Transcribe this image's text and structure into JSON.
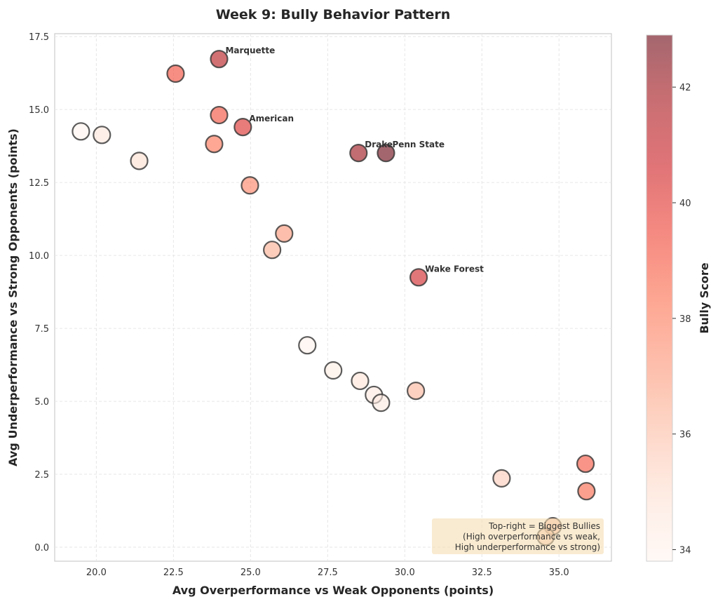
{
  "chart_data": {
    "type": "scatter",
    "title": "Week 9: Bully Behavior Pattern",
    "xlabel": "Avg Overperformance vs Weak Opponents (points)",
    "ylabel": "Avg Underperformance vs Strong Opponents (points)",
    "xlim": [
      18.65,
      36.7
    ],
    "ylim": [
      -0.48,
      17.6
    ],
    "xticks": [
      20.0,
      22.5,
      25.0,
      27.5,
      30.0,
      32.5,
      35.0
    ],
    "xtick_labels": [
      "20.0",
      "22.5",
      "25.0",
      "27.5",
      "30.0",
      "32.5",
      "35.0"
    ],
    "yticks": [
      0.0,
      2.5,
      5.0,
      7.5,
      10.0,
      12.5,
      15.0,
      17.5
    ],
    "ytick_labels": [
      "0.0",
      "2.5",
      "5.0",
      "7.5",
      "10.0",
      "12.5",
      "15.0",
      "17.5"
    ],
    "grid": true,
    "colorbar": {
      "label": "Bully Score",
      "colormap": "Reds",
      "range": [
        33.8,
        42.9
      ],
      "ticks": [
        34,
        36,
        38,
        40,
        42
      ],
      "tick_labels": [
        "34",
        "36",
        "38",
        "40",
        "42"
      ]
    },
    "points": [
      {
        "x": 19.5,
        "y": 14.25,
        "score": 33.9,
        "label": ""
      },
      {
        "x": 20.18,
        "y": 14.13,
        "score": 34.6,
        "label": ""
      },
      {
        "x": 21.39,
        "y": 13.24,
        "score": 35.0,
        "label": ""
      },
      {
        "x": 22.57,
        "y": 16.23,
        "score": 39.3,
        "label": ""
      },
      {
        "x": 23.98,
        "y": 16.73,
        "score": 41.3,
        "label": "Marquette"
      },
      {
        "x": 23.98,
        "y": 14.81,
        "score": 39.2,
        "label": ""
      },
      {
        "x": 24.75,
        "y": 14.4,
        "score": 40.2,
        "label": "American"
      },
      {
        "x": 23.82,
        "y": 13.82,
        "score": 38.3,
        "label": ""
      },
      {
        "x": 24.98,
        "y": 12.4,
        "score": 37.8,
        "label": ""
      },
      {
        "x": 26.09,
        "y": 10.75,
        "score": 37.2,
        "label": ""
      },
      {
        "x": 25.7,
        "y": 10.19,
        "score": 36.5,
        "label": ""
      },
      {
        "x": 28.5,
        "y": 13.51,
        "score": 42.0,
        "label": "Drake"
      },
      {
        "x": 29.39,
        "y": 13.51,
        "score": 42.9,
        "label": "Penn State"
      },
      {
        "x": 30.45,
        "y": 9.25,
        "score": 40.5,
        "label": "Wake Forest"
      },
      {
        "x": 26.84,
        "y": 6.92,
        "score": 34.0,
        "label": ""
      },
      {
        "x": 27.68,
        "y": 6.06,
        "score": 34.2,
        "label": ""
      },
      {
        "x": 28.55,
        "y": 5.7,
        "score": 34.8,
        "label": ""
      },
      {
        "x": 29.0,
        "y": 5.22,
        "score": 34.5,
        "label": ""
      },
      {
        "x": 29.23,
        "y": 4.95,
        "score": 34.4,
        "label": ""
      },
      {
        "x": 30.36,
        "y": 5.36,
        "score": 36.3,
        "label": ""
      },
      {
        "x": 33.14,
        "y": 2.36,
        "score": 35.6,
        "label": ""
      },
      {
        "x": 35.86,
        "y": 2.86,
        "score": 39.0,
        "label": ""
      },
      {
        "x": 35.89,
        "y": 1.92,
        "score": 38.6,
        "label": ""
      },
      {
        "x": 34.8,
        "y": 0.72,
        "score": 36.5,
        "label": ""
      },
      {
        "x": 34.57,
        "y": 0.36,
        "score": 36.0,
        "label": ""
      }
    ],
    "annotation": {
      "lines": [
        "Top-right = Biggest Bullies",
        "(High overperformance vs weak,",
        "High underperformance vs strong)"
      ],
      "position": "bottom-right",
      "background": "#f5deb3"
    }
  }
}
